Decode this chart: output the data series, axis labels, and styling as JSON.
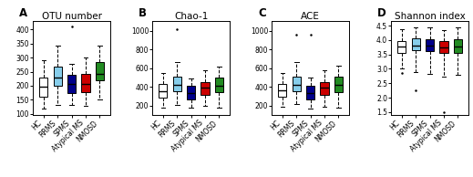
{
  "panels": [
    {
      "label": "A",
      "title": "OTU number",
      "ylim": [
        95,
        430
      ],
      "yticks": [
        100,
        150,
        200,
        250,
        300,
        350,
        400
      ],
      "boxes": [
        {
          "group": "HC",
          "color": "#ffffff",
          "q1": 162,
          "median": 195,
          "q3": 228,
          "whislo": 118,
          "whishi": 292,
          "outliers": []
        },
        {
          "group": "RRMS",
          "color": "#87CEEB",
          "q1": 198,
          "median": 228,
          "q3": 268,
          "whislo": 132,
          "whishi": 342,
          "outliers": []
        },
        {
          "group": "SPMS",
          "color": "#00008B",
          "q1": 175,
          "median": 205,
          "q3": 238,
          "whislo": 132,
          "whishi": 278,
          "outliers": [
            412
          ]
        },
        {
          "group": "Atypical MS",
          "color": "#CC0000",
          "q1": 178,
          "median": 205,
          "q3": 242,
          "whislo": 128,
          "whishi": 302,
          "outliers": []
        },
        {
          "group": "NMOSD",
          "color": "#228B22",
          "q1": 218,
          "median": 242,
          "q3": 285,
          "whislo": 152,
          "whishi": 342,
          "outliers": []
        }
      ]
    },
    {
      "label": "B",
      "title": "Chao-1",
      "ylim": [
        100,
        1100
      ],
      "yticks": [
        200,
        400,
        600,
        800,
        1000
      ],
      "boxes": [
        {
          "group": "HC",
          "color": "#ffffff",
          "q1": 288,
          "median": 352,
          "q3": 435,
          "whislo": 182,
          "whishi": 548,
          "outliers": []
        },
        {
          "group": "RRMS",
          "color": "#87CEEB",
          "q1": 358,
          "median": 422,
          "q3": 512,
          "whislo": 208,
          "whishi": 662,
          "outliers": [
            1012
          ]
        },
        {
          "group": "SPMS",
          "color": "#00008B",
          "q1": 268,
          "median": 332,
          "q3": 412,
          "whislo": 178,
          "whishi": 492,
          "outliers": []
        },
        {
          "group": "Atypical MS",
          "color": "#CC0000",
          "q1": 318,
          "median": 388,
          "q3": 452,
          "whislo": 198,
          "whishi": 582,
          "outliers": []
        },
        {
          "group": "NMOSD",
          "color": "#228B22",
          "q1": 342,
          "median": 412,
          "q3": 502,
          "whislo": 182,
          "whishi": 618,
          "outliers": []
        }
      ]
    },
    {
      "label": "C",
      "title": "ACE",
      "ylim": [
        100,
        1100
      ],
      "yticks": [
        200,
        400,
        600,
        800,
        1000
      ],
      "boxes": [
        {
          "group": "HC",
          "color": "#ffffff",
          "q1": 292,
          "median": 362,
          "q3": 432,
          "whislo": 192,
          "whishi": 548,
          "outliers": []
        },
        {
          "group": "RRMS",
          "color": "#87CEEB",
          "q1": 358,
          "median": 422,
          "q3": 512,
          "whislo": 218,
          "whishi": 662,
          "outliers": [
            952
          ]
        },
        {
          "group": "SPMS",
          "color": "#00008B",
          "q1": 268,
          "median": 332,
          "q3": 412,
          "whislo": 172,
          "whishi": 502,
          "outliers": [
            952
          ]
        },
        {
          "group": "Atypical MS",
          "color": "#CC0000",
          "q1": 318,
          "median": 388,
          "q3": 452,
          "whislo": 192,
          "whishi": 578,
          "outliers": []
        },
        {
          "group": "NMOSD",
          "color": "#228B22",
          "q1": 348,
          "median": 418,
          "q3": 512,
          "whislo": 182,
          "whishi": 622,
          "outliers": []
        }
      ]
    },
    {
      "label": "D",
      "title": "Shannon index",
      "ylim": [
        1.4,
        4.65
      ],
      "yticks": [
        1.5,
        2.0,
        2.5,
        3.0,
        3.5,
        4.0,
        4.5
      ],
      "boxes": [
        {
          "group": "HC",
          "color": "#ffffff",
          "q1": 3.55,
          "median": 3.76,
          "q3": 3.95,
          "whislo": 3.02,
          "whishi": 4.38,
          "outliers": [
            2.85
          ]
        },
        {
          "group": "RRMS",
          "color": "#87CEEB",
          "q1": 3.65,
          "median": 3.82,
          "q3": 4.05,
          "whislo": 2.88,
          "whishi": 4.45,
          "outliers": [
            2.25
          ]
        },
        {
          "group": "SPMS",
          "color": "#00008B",
          "q1": 3.62,
          "median": 3.82,
          "q3": 4.02,
          "whislo": 2.82,
          "whishi": 4.45,
          "outliers": []
        },
        {
          "group": "Atypical MS",
          "color": "#CC0000",
          "q1": 3.55,
          "median": 3.75,
          "q3": 3.95,
          "whislo": 2.72,
          "whishi": 4.35,
          "outliers": [
            1.5
          ]
        },
        {
          "group": "NMOSD",
          "color": "#228B22",
          "q1": 3.55,
          "median": 3.78,
          "q3": 4.02,
          "whislo": 2.78,
          "whishi": 4.45,
          "outliers": []
        }
      ]
    }
  ],
  "box_width": 0.6,
  "background_color": "#ffffff",
  "fontsize_title": 7.5,
  "fontsize_tick": 5.5,
  "fontsize_label": 7
}
